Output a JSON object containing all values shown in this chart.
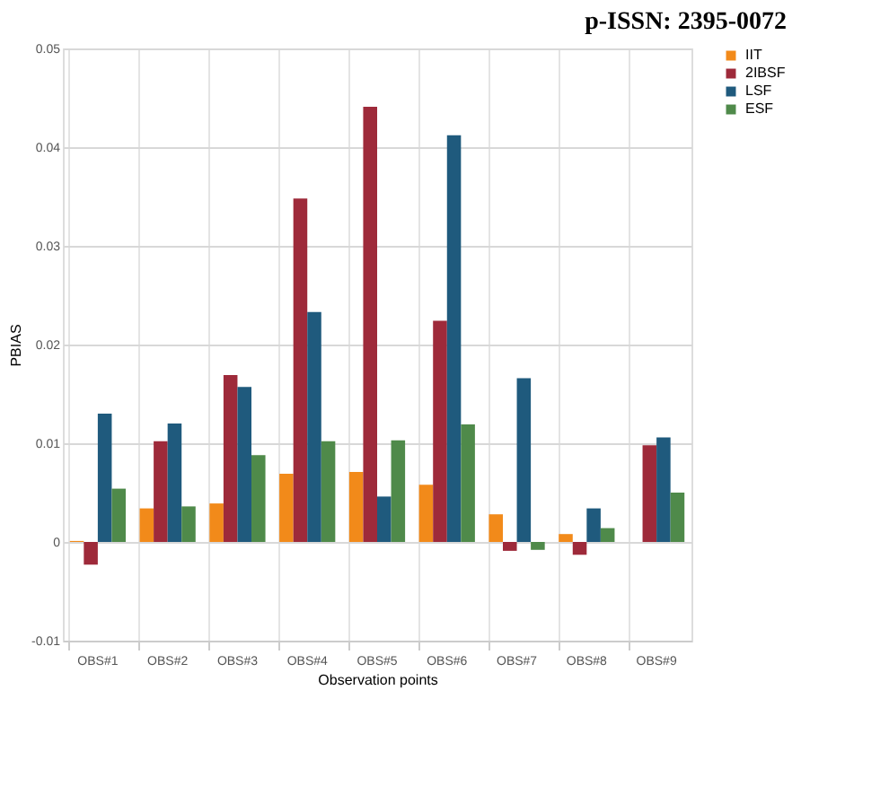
{
  "chart_data": {
    "type": "bar",
    "xlabel": "Observation points",
    "ylabel": "PBIAS",
    "annotations": [
      "p-ISSN: 2395-0072"
    ],
    "categories": [
      "OBS#1",
      "OBS#2",
      "OBS#3",
      "OBS#4",
      "OBS#5",
      "OBS#6",
      "OBS#7",
      "OBS#8",
      "OBS#9"
    ],
    "series": [
      {
        "name": "IIT",
        "color": "#f28a1a",
        "values": [
          0.0001,
          0.0034,
          0.0039,
          0.0069,
          0.0071,
          0.0058,
          0.0028,
          0.0008,
          0
        ]
      },
      {
        "name": "2IBSF",
        "color": "#9e2a3a",
        "values": [
          -0.0023,
          0.0102,
          0.0169,
          0.0348,
          0.0441,
          0.0224,
          -0.0009,
          -0.0013,
          0.0098
        ]
      },
      {
        "name": "LSF",
        "color": "#1f5a7d",
        "values": [
          0.013,
          0.012,
          0.0157,
          0.0233,
          0.0046,
          0.0412,
          0.0166,
          0.0034,
          0.0106
        ]
      },
      {
        "name": "ESF",
        "color": "#4f8a4a",
        "values": [
          0.0054,
          0.0036,
          0.0088,
          0.0102,
          0.0103,
          0.0119,
          -0.0008,
          0.0014,
          0.005
        ]
      }
    ],
    "ylim": [
      -0.01,
      0.05
    ],
    "yticks": [
      -0.01,
      0,
      0.01,
      0.02,
      0.03,
      0.04,
      0.05
    ],
    "grid": true,
    "legend": "right"
  }
}
